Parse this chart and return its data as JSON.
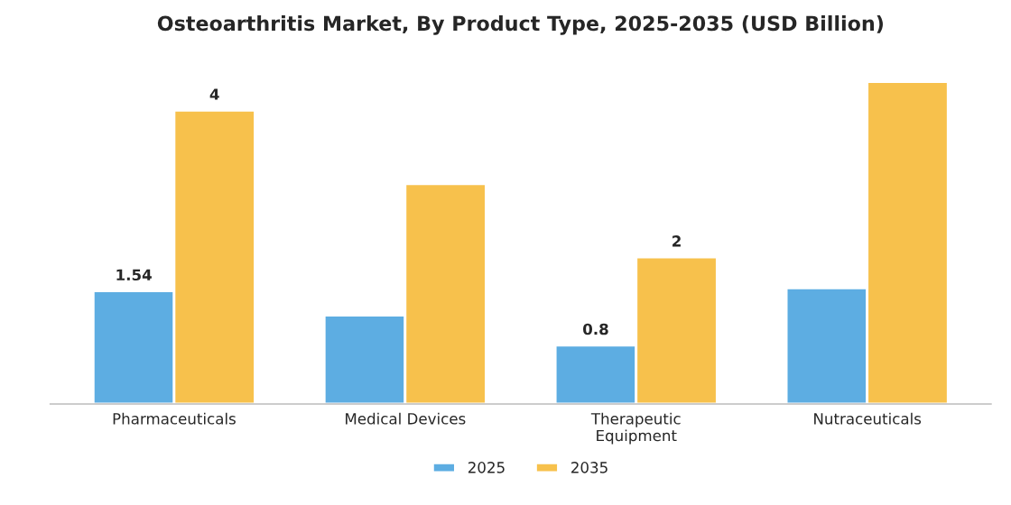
{
  "chart_data": {
    "type": "bar",
    "title": "Osteoarthritis Market, By Product Type, 2025-2035 (USD Billion)",
    "categories": [
      "Pharmaceuticals",
      "Medical Devices",
      "Therapeutic\nEquipment",
      "Nutraceuticals"
    ],
    "series": [
      {
        "name": "2025",
        "color": "#5dade2",
        "values": [
          1.54,
          1.21,
          0.8,
          1.58
        ],
        "value_labels": [
          "1.54",
          null,
          "0.8",
          null
        ]
      },
      {
        "name": "2035",
        "color": "#f7c14c",
        "values": [
          4,
          3.0,
          2,
          4.39
        ],
        "value_labels": [
          "4",
          null,
          "2",
          null
        ]
      }
    ],
    "legend": "bottom",
    "grid": false
  }
}
